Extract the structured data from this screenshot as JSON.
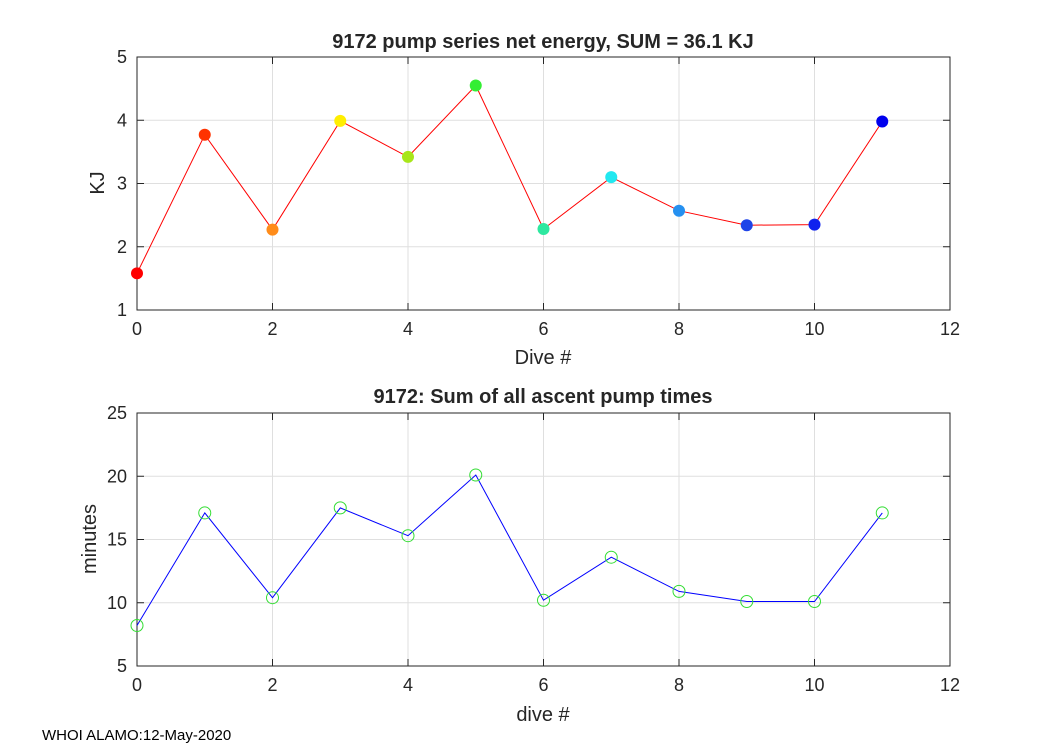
{
  "footer": "WHOI ALAMO:12-May-2020",
  "chart_data": [
    {
      "type": "line",
      "title": "9172 pump series net energy, SUM =  36.1 KJ",
      "xlabel": "Dive #",
      "ylabel": "KJ",
      "xlim": [
        0,
        12
      ],
      "ylim": [
        1,
        5
      ],
      "xticks": [
        0,
        2,
        4,
        6,
        8,
        10,
        12
      ],
      "yticks": [
        1,
        2,
        3,
        4,
        5
      ],
      "grid": true,
      "line_color": "#ff0000",
      "marker": "filled-circle",
      "x": [
        0,
        1,
        2,
        3,
        4,
        5,
        6,
        7,
        8,
        9,
        10,
        11
      ],
      "y": [
        1.58,
        3.77,
        2.27,
        3.99,
        3.42,
        4.55,
        2.28,
        3.1,
        2.57,
        2.34,
        2.35,
        3.98
      ],
      "marker_colors": [
        "#ff0000",
        "#ff3300",
        "#ff8c1a",
        "#ffee00",
        "#a8e61a",
        "#33ee33",
        "#2ee8a0",
        "#22e8f0",
        "#2590f0",
        "#1f44e8",
        "#0f22ee",
        "#0000ee"
      ]
    },
    {
      "type": "line",
      "title": "9172: Sum of all ascent pump times",
      "xlabel": "dive #",
      "ylabel": "minutes",
      "xlim": [
        0,
        12
      ],
      "ylim": [
        5,
        25
      ],
      "xticks": [
        0,
        2,
        4,
        6,
        8,
        10,
        12
      ],
      "yticks": [
        5,
        10,
        15,
        20,
        25
      ],
      "grid": true,
      "line_color": "#0000ff",
      "marker": "open-circle",
      "marker_color": "#33dd33",
      "x": [
        0,
        1,
        2,
        3,
        4,
        5,
        6,
        7,
        8,
        9,
        10,
        11
      ],
      "y": [
        8.2,
        17.1,
        10.4,
        17.5,
        15.3,
        20.1,
        10.2,
        13.6,
        10.9,
        10.1,
        10.1,
        17.1
      ]
    }
  ]
}
